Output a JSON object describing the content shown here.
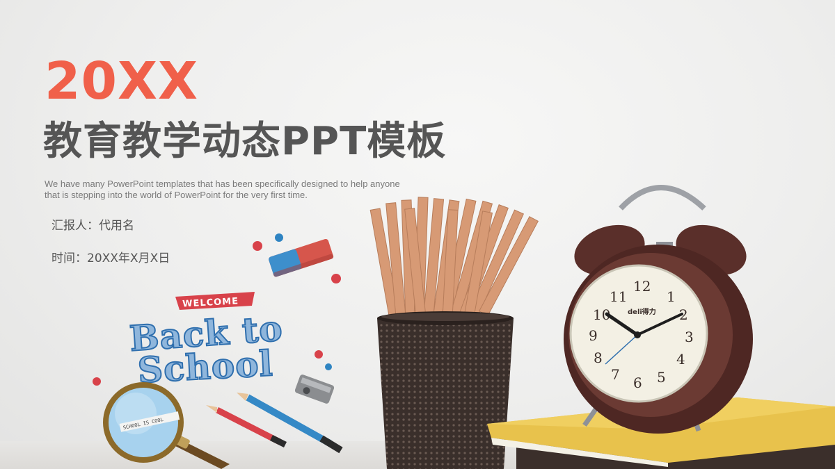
{
  "slide": {
    "year": "20XX",
    "title": "教育教学动态PPT模板",
    "description_line1": "We have many PowerPoint templates that has been specifically designed to help anyone",
    "description_line2": "that is stepping into the world of PowerPoint for the very first time.",
    "reporter": "汇报人：代用名",
    "time": "时间：20XX年X月X日"
  },
  "illustration": {
    "welcome_label": "WELCOME",
    "back_to_line1": "Back to",
    "back_to_line2": "School",
    "lens_label": "SCHOOL IS COOL",
    "clock_brand": "deli得力",
    "clock_numbers": [
      "12",
      "1",
      "2",
      "3",
      "4",
      "5",
      "6",
      "7",
      "8",
      "9",
      "10",
      "11"
    ]
  },
  "colors": {
    "accent": "#f0604a",
    "title": "#555555",
    "text": "#7a7a7a"
  }
}
